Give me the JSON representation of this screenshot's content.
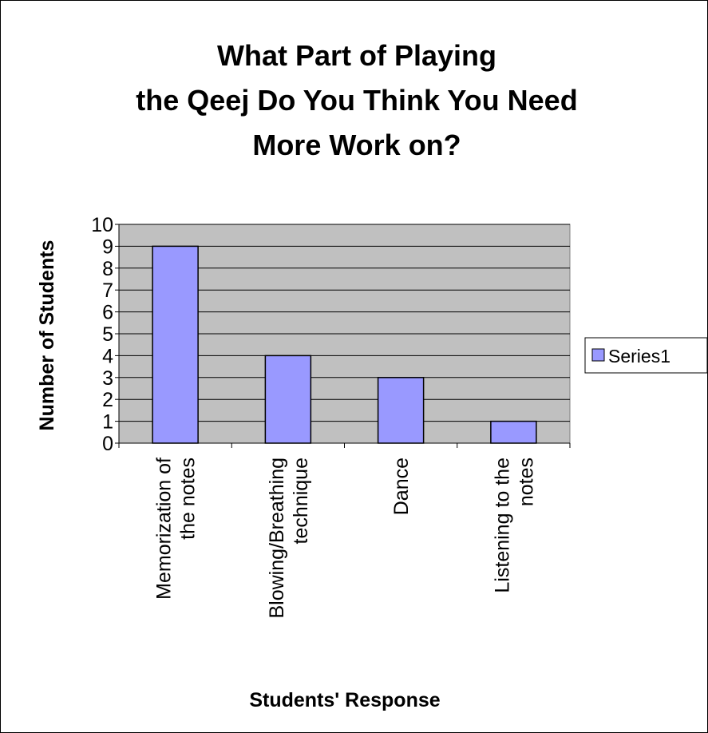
{
  "chart_data": {
    "type": "bar",
    "title_lines": [
      "What Part of Playing",
      "the Qeej Do You Think You Need",
      "More Work on?"
    ],
    "xlabel": "Students' Response",
    "ylabel": "Number of Students",
    "categories": [
      [
        "Memorization of",
        "the notes"
      ],
      [
        "Blowing/Breathing",
        "technique"
      ],
      [
        "Dance"
      ],
      [
        "Listening to the",
        "notes"
      ]
    ],
    "series": [
      {
        "name": "Series1",
        "values": [
          9,
          4,
          3,
          1
        ]
      }
    ],
    "ylim": [
      0,
      10
    ],
    "yticks": [
      "0",
      "1",
      "2",
      "3",
      "4",
      "5",
      "6",
      "7",
      "8",
      "9",
      "10"
    ],
    "grid": true,
    "legend_position": "right",
    "colors": {
      "bar": "#9999ff",
      "plot_bg": "#c0c0c0",
      "gridline": "#000000"
    }
  }
}
